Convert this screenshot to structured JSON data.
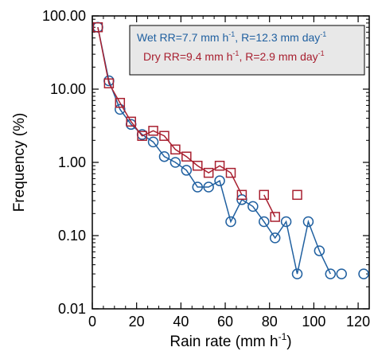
{
  "chart_data": {
    "type": "line",
    "xlabel": "Rain rate (mm h",
    "xlabel_sup": "-1",
    "xlabel_tail": ")",
    "ylabel": "Frequency (%)",
    "xlim": [
      0,
      125
    ],
    "ylim": [
      0.01,
      100
    ],
    "yscale": "log",
    "x_ticks": [
      0,
      20,
      40,
      60,
      80,
      100,
      120
    ],
    "x_tick_labels": [
      "0",
      "20",
      "40",
      "60",
      "80",
      "100",
      "120"
    ],
    "y_ticks": [
      0.01,
      0.1,
      1,
      10,
      100
    ],
    "y_tick_labels": [
      "0.01",
      "0.10",
      "1.00",
      "10.00",
      "100.00"
    ],
    "grid": false,
    "legend": {
      "position": "top-right",
      "entries": [
        {
          "base": "Wet RR=7.7 mm h",
          "sup1": "-1",
          "mid": ", R=12.3 mm day",
          "sup2": "-1"
        },
        {
          "base": "Dry RR=9.4 mm h",
          "sup1": "-1",
          "mid": ", R=2.9 mm day",
          "sup2": "-1"
        }
      ]
    },
    "series": [
      {
        "marker": "circle",
        "color": "#2060a0",
        "points": [
          {
            "x": 2.5,
            "y": 70
          },
          {
            "x": 7.5,
            "y": 13
          },
          {
            "x": 12.5,
            "y": 5.3
          },
          {
            "x": 17.5,
            "y": 3.3
          },
          {
            "x": 22.5,
            "y": 2.4
          },
          {
            "x": 27.5,
            "y": 1.9
          },
          {
            "x": 32.5,
            "y": 1.2
          },
          {
            "x": 37.5,
            "y": 1.0
          },
          {
            "x": 42.5,
            "y": 0.78
          },
          {
            "x": 47.5,
            "y": 0.46
          },
          {
            "x": 52.5,
            "y": 0.46
          },
          {
            "x": 57.5,
            "y": 0.56
          },
          {
            "x": 62.5,
            "y": 0.155
          },
          {
            "x": 67.5,
            "y": 0.31
          },
          {
            "x": 72.5,
            "y": 0.25
          },
          {
            "x": 77.5,
            "y": 0.155
          },
          {
            "x": 82.5,
            "y": 0.093
          },
          {
            "x": 87.5,
            "y": 0.155
          },
          {
            "x": 92.5,
            "y": 0.03
          },
          {
            "x": 97.5,
            "y": 0.155
          },
          {
            "x": 102.5,
            "y": 0.062
          },
          {
            "x": 107.5,
            "y": 0.03
          },
          {
            "x": 112.5,
            "y": 0.03
          },
          {
            "x": 122.5,
            "y": 0.03
          }
        ],
        "line_segments": [
          [
            0,
            21
          ]
        ]
      },
      {
        "marker": "square",
        "color": "#a82030",
        "points": [
          {
            "x": 2.5,
            "y": 70
          },
          {
            "x": 7.5,
            "y": 12
          },
          {
            "x": 12.5,
            "y": 6.5
          },
          {
            "x": 17.5,
            "y": 3.6
          },
          {
            "x": 22.5,
            "y": 2.3
          },
          {
            "x": 27.5,
            "y": 2.7
          },
          {
            "x": 32.5,
            "y": 2.3
          },
          {
            "x": 37.5,
            "y": 1.5
          },
          {
            "x": 42.5,
            "y": 1.2
          },
          {
            "x": 47.5,
            "y": 0.9
          },
          {
            "x": 52.5,
            "y": 0.72
          },
          {
            "x": 57.5,
            "y": 0.9
          },
          {
            "x": 62.5,
            "y": 0.72
          },
          {
            "x": 67.5,
            "y": 0.36
          },
          {
            "x": 77.5,
            "y": 0.36
          },
          {
            "x": 82.5,
            "y": 0.18
          },
          {
            "x": 92.5,
            "y": 0.36
          }
        ],
        "line_segments": [
          [
            0,
            13
          ],
          [
            14,
            15
          ]
        ]
      }
    ]
  }
}
